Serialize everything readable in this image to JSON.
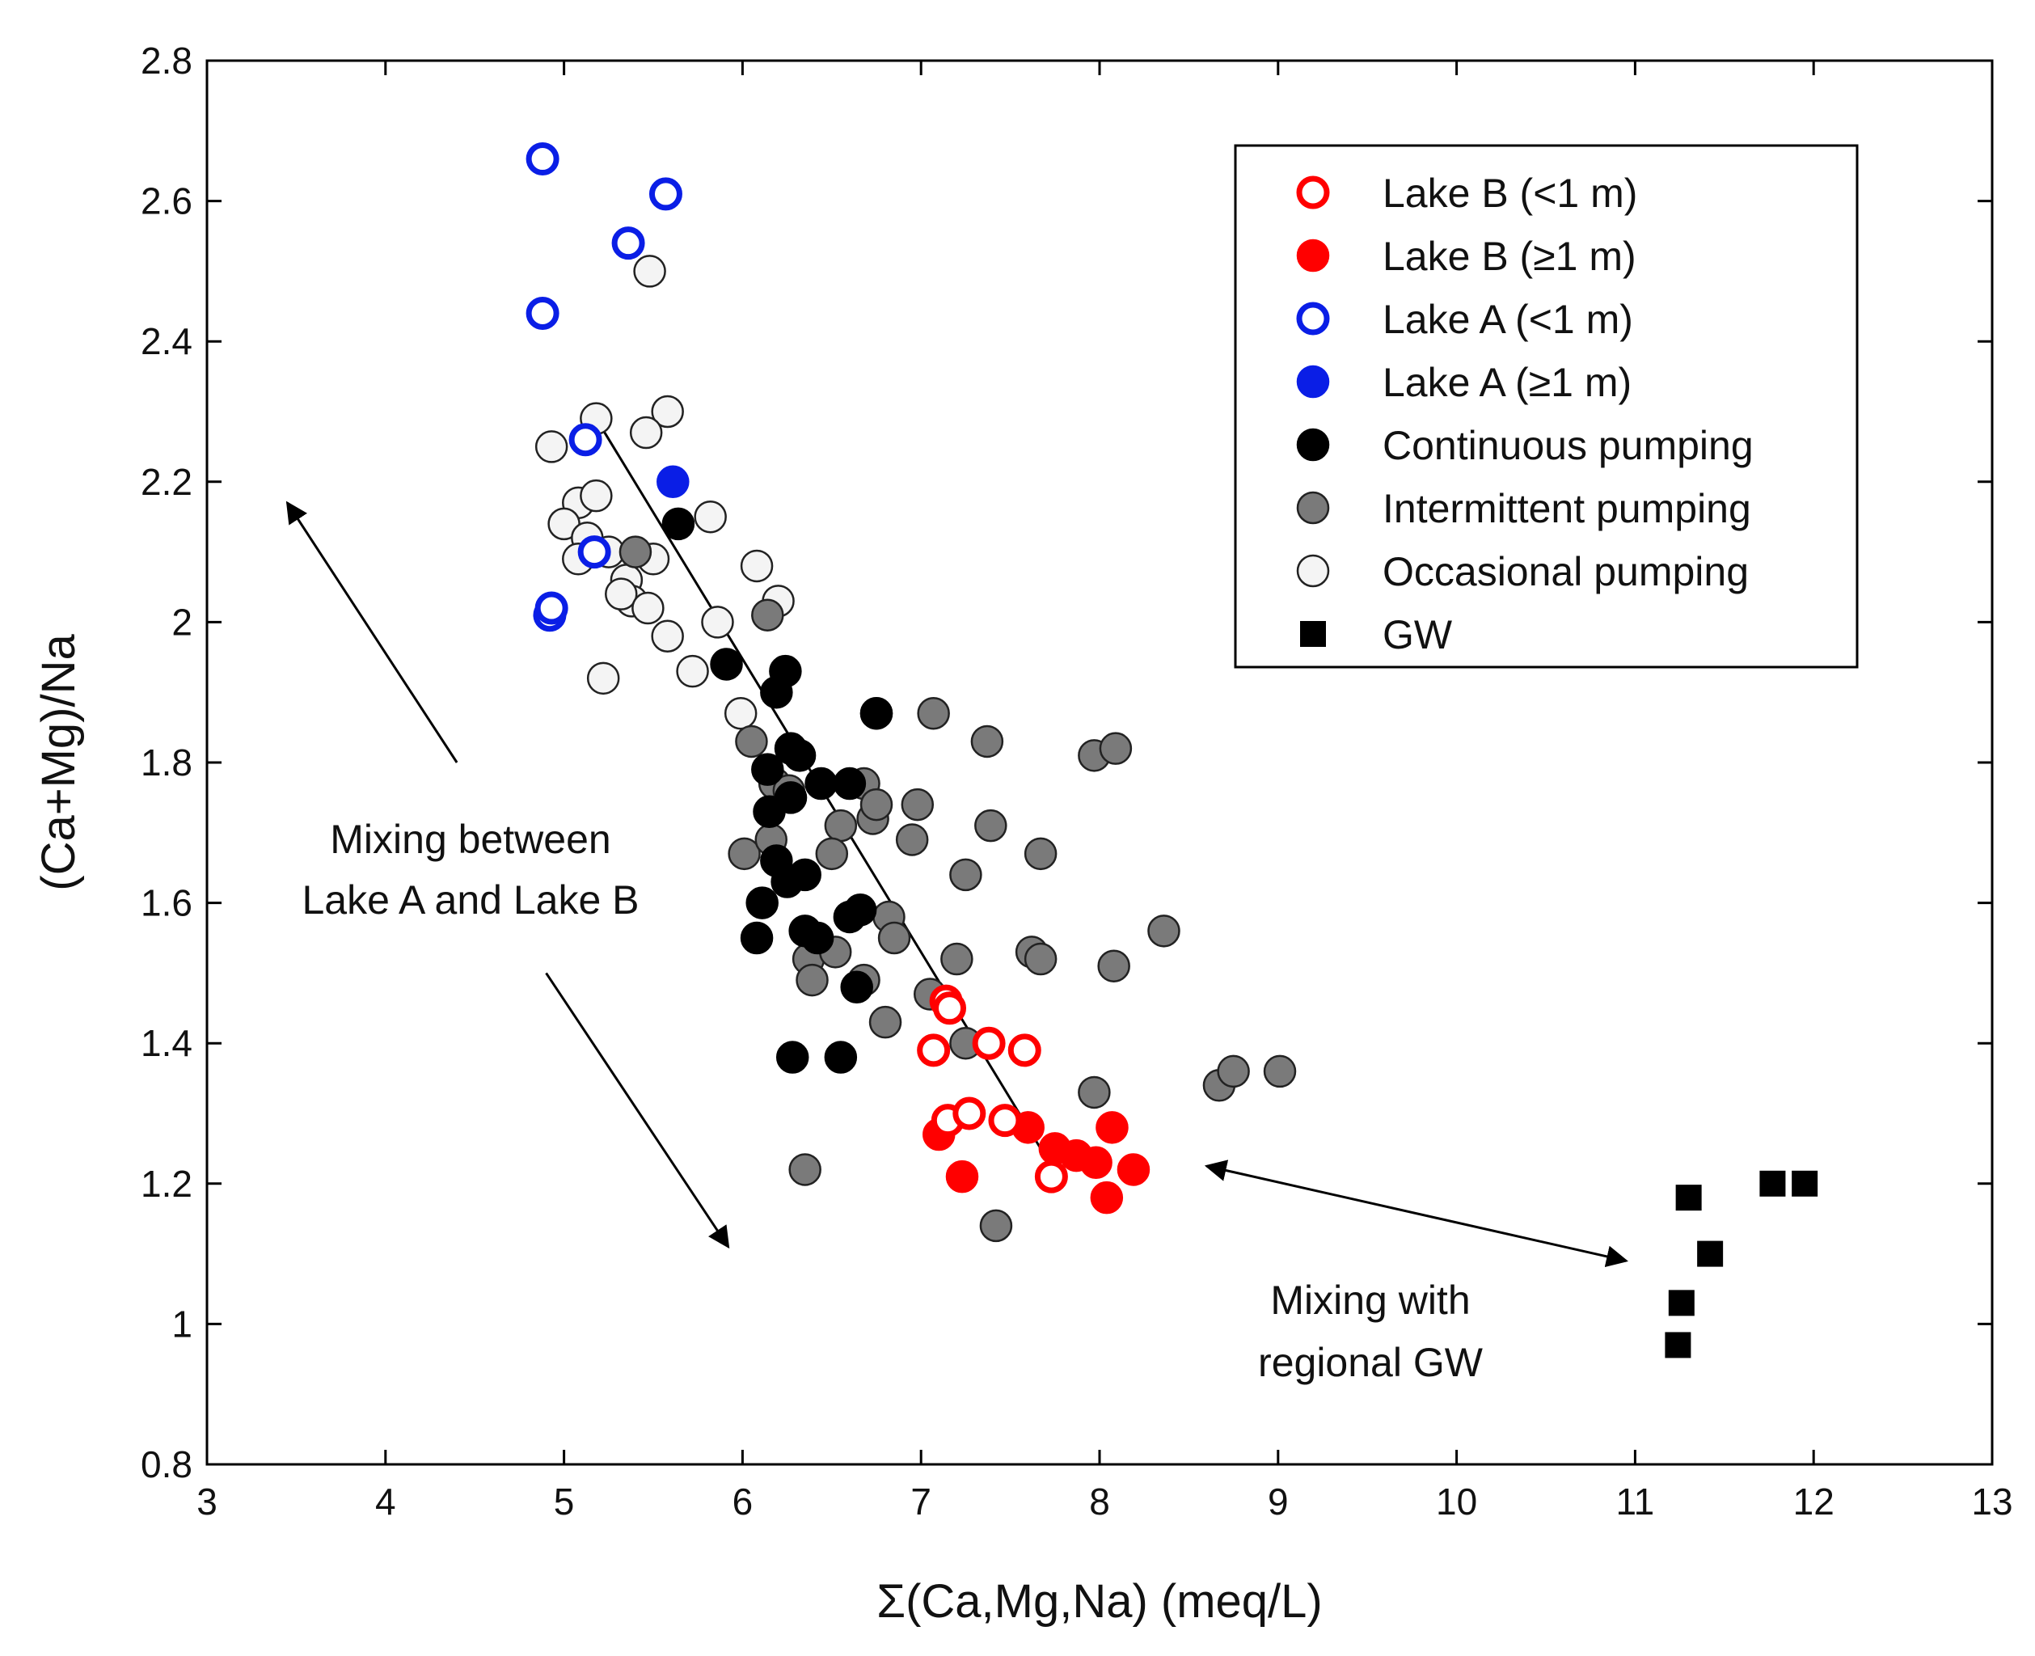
{
  "chart_data": {
    "type": "scatter",
    "xlabel": "Σ(Ca,Mg,Na) (meq/L)",
    "ylabel": "(Ca+Mg)/Na",
    "xlim": [
      3,
      13
    ],
    "ylim": [
      0.8,
      2.8
    ],
    "xticks": [
      3,
      4,
      5,
      6,
      7,
      8,
      9,
      10,
      11,
      12,
      13
    ],
    "xtick_labels": [
      "3",
      "4",
      "5",
      "6",
      "7",
      "8",
      "9",
      "10",
      "11",
      "12",
      "13"
    ],
    "yticks": [
      0.8,
      1.0,
      1.2,
      1.4,
      1.6,
      1.8,
      2.0,
      2.2,
      2.4,
      2.6,
      2.8
    ],
    "ytick_labels": [
      "0.8",
      "1",
      "1.2",
      "1.4",
      "1.6",
      "1.8",
      "2",
      "2.2",
      "2.4",
      "2.6",
      "2.8"
    ],
    "grid": false,
    "legend_position": "top-right",
    "series": [
      {
        "name": "Occasional pumping",
        "marker": "circle-filled",
        "fill": "#f4f4f4",
        "stroke": "#222222",
        "points": [
          [
            5.48,
            2.5
          ],
          [
            5.18,
            2.29
          ],
          [
            5.58,
            2.3
          ],
          [
            5.46,
            2.27
          ],
          [
            4.93,
            2.25
          ],
          [
            5.08,
            2.17
          ],
          [
            5.18,
            2.18
          ],
          [
            5.0,
            2.14
          ],
          [
            5.13,
            2.12
          ],
          [
            5.08,
            2.09
          ],
          [
            5.25,
            2.1
          ],
          [
            5.5,
            2.09
          ],
          [
            5.35,
            2.06
          ],
          [
            5.38,
            2.03
          ],
          [
            5.32,
            2.04
          ],
          [
            5.47,
            2.02
          ],
          [
            5.58,
            1.98
          ],
          [
            5.22,
            1.92
          ],
          [
            5.72,
            1.93
          ],
          [
            5.82,
            2.15
          ],
          [
            6.08,
            2.08
          ],
          [
            6.2,
            2.03
          ],
          [
            5.86,
            2.0
          ],
          [
            5.99,
            1.87
          ]
        ]
      },
      {
        "name": "Intermittent pumping",
        "marker": "circle-filled",
        "fill": "#7a7a7a",
        "stroke": "#222222",
        "points": [
          [
            5.4,
            2.1
          ],
          [
            6.14,
            2.01
          ],
          [
            6.75,
            1.87
          ],
          [
            7.07,
            1.87
          ],
          [
            7.37,
            1.83
          ],
          [
            7.97,
            1.81
          ],
          [
            8.09,
            1.82
          ],
          [
            6.05,
            1.83
          ],
          [
            6.18,
            1.77
          ],
          [
            6.26,
            1.76
          ],
          [
            6.55,
            1.71
          ],
          [
            6.68,
            1.77
          ],
          [
            6.73,
            1.72
          ],
          [
            6.75,
            1.74
          ],
          [
            6.98,
            1.74
          ],
          [
            6.01,
            1.67
          ],
          [
            6.16,
            1.69
          ],
          [
            6.5,
            1.67
          ],
          [
            6.95,
            1.69
          ],
          [
            7.39,
            1.71
          ],
          [
            7.67,
            1.67
          ],
          [
            7.25,
            1.64
          ],
          [
            6.82,
            1.58
          ],
          [
            6.85,
            1.55
          ],
          [
            7.2,
            1.52
          ],
          [
            7.62,
            1.53
          ],
          [
            7.67,
            1.52
          ],
          [
            8.08,
            1.51
          ],
          [
            8.36,
            1.56
          ],
          [
            6.37,
            1.52
          ],
          [
            6.39,
            1.49
          ],
          [
            6.52,
            1.53
          ],
          [
            6.68,
            1.49
          ],
          [
            6.8,
            1.43
          ],
          [
            7.05,
            1.47
          ],
          [
            7.25,
            1.4
          ],
          [
            7.97,
            1.33
          ],
          [
            8.67,
            1.34
          ],
          [
            8.75,
            1.36
          ],
          [
            9.01,
            1.36
          ],
          [
            6.35,
            1.22
          ],
          [
            7.42,
            1.14
          ]
        ]
      },
      {
        "name": "Continuous pumping",
        "marker": "circle-filled",
        "fill": "#000000",
        "stroke": "#000000",
        "points": [
          [
            5.64,
            2.14
          ],
          [
            5.91,
            1.94
          ],
          [
            6.24,
            1.93
          ],
          [
            6.19,
            1.9
          ],
          [
            6.75,
            1.87
          ],
          [
            6.14,
            1.79
          ],
          [
            6.27,
            1.82
          ],
          [
            6.32,
            1.81
          ],
          [
            6.44,
            1.77
          ],
          [
            6.6,
            1.77
          ],
          [
            6.15,
            1.73
          ],
          [
            6.27,
            1.75
          ],
          [
            6.19,
            1.66
          ],
          [
            6.25,
            1.63
          ],
          [
            6.35,
            1.64
          ],
          [
            6.11,
            1.6
          ],
          [
            6.08,
            1.55
          ],
          [
            6.35,
            1.56
          ],
          [
            6.42,
            1.55
          ],
          [
            6.6,
            1.58
          ],
          [
            6.66,
            1.59
          ],
          [
            6.64,
            1.48
          ],
          [
            6.28,
            1.38
          ],
          [
            6.55,
            1.38
          ]
        ]
      },
      {
        "name": "Lake A (≥1 m)",
        "marker": "circle-filled",
        "fill": "#0a1ee6",
        "stroke": "#0a1ee6",
        "points": [
          [
            5.61,
            2.2
          ]
        ]
      },
      {
        "name": "Lake A (<1 m)",
        "marker": "circle-open",
        "fill": "#ffffff",
        "stroke": "#0a1ee6",
        "points": [
          [
            4.88,
            2.66
          ],
          [
            5.57,
            2.61
          ],
          [
            5.36,
            2.54
          ],
          [
            4.88,
            2.44
          ],
          [
            5.12,
            2.26
          ],
          [
            5.17,
            2.1
          ],
          [
            4.92,
            2.01
          ],
          [
            4.93,
            2.02
          ]
        ]
      },
      {
        "name": "Lake B (≥1 m)",
        "marker": "circle-filled",
        "fill": "#ff0000",
        "stroke": "#ff0000",
        "points": [
          [
            7.6,
            1.28
          ],
          [
            7.75,
            1.25
          ],
          [
            7.87,
            1.24
          ],
          [
            7.98,
            1.23
          ],
          [
            8.07,
            1.28
          ],
          [
            8.19,
            1.22
          ],
          [
            7.1,
            1.27
          ],
          [
            7.23,
            1.21
          ],
          [
            8.04,
            1.18
          ]
        ]
      },
      {
        "name": "Lake B (<1 m)",
        "marker": "circle-open",
        "fill": "#ffffff",
        "stroke": "#ff0000",
        "points": [
          [
            7.14,
            1.46
          ],
          [
            7.16,
            1.45
          ],
          [
            7.07,
            1.39
          ],
          [
            7.38,
            1.4
          ],
          [
            7.58,
            1.39
          ],
          [
            7.15,
            1.29
          ],
          [
            7.27,
            1.3
          ],
          [
            7.47,
            1.29
          ],
          [
            7.73,
            1.21
          ]
        ]
      },
      {
        "name": "GW",
        "marker": "square",
        "fill": "#000000",
        "stroke": "#000000",
        "points": [
          [
            11.3,
            1.18
          ],
          [
            11.77,
            1.2
          ],
          [
            11.95,
            1.2
          ],
          [
            11.42,
            1.1
          ],
          [
            11.26,
            1.03
          ],
          [
            11.24,
            0.97
          ]
        ]
      }
    ],
    "legend_entries": [
      "Lake B (<1 m)",
      "Lake B (≥1 m)",
      "Lake A (<1 m)",
      "Lake A (≥1 m)",
      "Continuous pumping",
      "Intermittent pumping",
      "Occasional pumping",
      "GW"
    ],
    "trend_line": {
      "from": [
        5.18,
        2.29
      ],
      "to": [
        7.67,
        1.25
      ]
    },
    "annotations": {
      "mixing_lakes_line1": "Mixing between",
      "mixing_lakes_line2": "Lake A and Lake B",
      "mixing_gw_line1": "Mixing with",
      "mixing_gw_line2": "regional GW"
    },
    "arrows": [
      {
        "name": "arrow-to-lake-a",
        "from": [
          4.4,
          1.8
        ],
        "to": [
          3.45,
          2.17
        ]
      },
      {
        "name": "arrow-to-lake-b",
        "from": [
          4.9,
          1.5
        ],
        "to": [
          5.92,
          1.11
        ]
      },
      {
        "name": "arrow-to-gw",
        "from": [
          8.6,
          1.225
        ],
        "to": [
          10.95,
          1.09
        ],
        "double": true
      }
    ]
  }
}
